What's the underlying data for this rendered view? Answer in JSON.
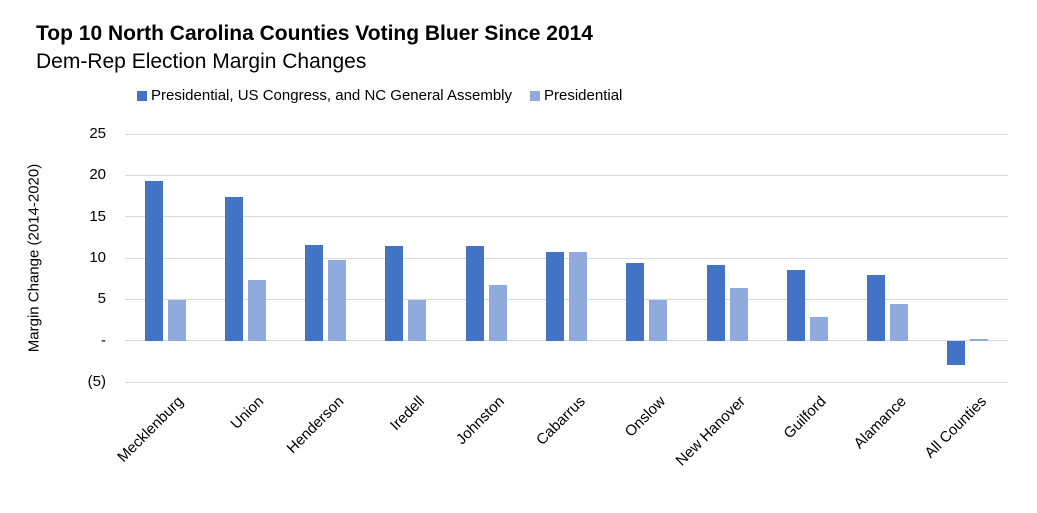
{
  "chart_data": {
    "type": "bar",
    "title": "Top 10 North Carolina Counties Voting Bluer Since 2014",
    "subtitle": "Dem-Rep Election Margin Changes",
    "ylabel": "Margin Change (2014-2020)",
    "ylim": [
      -5,
      25
    ],
    "grid": true,
    "legend_position": "top",
    "categories": [
      "Mecklenburg",
      "Union",
      "Henderson",
      "Iredell",
      "Johnston",
      "Cabarrus",
      "Onslow",
      "New Hanover",
      "Guilford",
      "Alamance",
      "All Counties"
    ],
    "series": [
      {
        "name": "Presidential, US Congress, and NC General Assembly",
        "color": "#4472c4",
        "values": [
          19.3,
          17.4,
          11.6,
          11.5,
          11.5,
          10.7,
          9.4,
          9.2,
          8.6,
          8.0,
          -3.0
        ]
      },
      {
        "name": "Presidential",
        "color": "#8faadc",
        "values": [
          4.9,
          7.3,
          9.7,
          4.9,
          6.7,
          10.7,
          4.9,
          6.4,
          2.9,
          4.4,
          0.2
        ]
      }
    ],
    "yticks": [
      {
        "value": 25,
        "label": "25"
      },
      {
        "value": 20,
        "label": "20"
      },
      {
        "value": 15,
        "label": "15"
      },
      {
        "value": 10,
        "label": "10"
      },
      {
        "value": 5,
        "label": "5"
      },
      {
        "value": 0,
        "label": "-"
      },
      {
        "value": -5,
        "label": "(5)"
      }
    ],
    "colors": {
      "gridline": "#d9d9d9",
      "text": "#000000",
      "background": "#ffffff"
    }
  }
}
